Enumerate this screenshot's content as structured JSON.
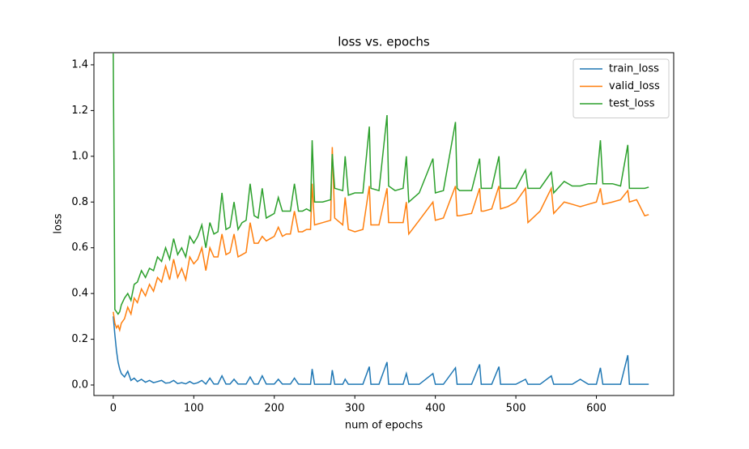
{
  "chart_data": {
    "type": "line",
    "title": "loss vs. epochs",
    "x_label": "num of epochs",
    "y_label": "loss",
    "legend": "upper right",
    "grid": false,
    "xlim": [
      -24,
      696
    ],
    "ylim": [
      -0.046,
      1.453
    ],
    "xticks": [
      0,
      100,
      200,
      300,
      400,
      500,
      600
    ],
    "yticks": [
      {
        "value": 0,
        "label": "0.0"
      },
      {
        "value": 0.2,
        "label": "0.2"
      },
      {
        "value": 0.4,
        "label": "0.4"
      },
      {
        "value": 0.6,
        "label": "0.6"
      },
      {
        "value": 0.8,
        "label": "0.8"
      },
      {
        "value": 1,
        "label": "1.0"
      },
      {
        "value": 1.2,
        "label": "1.2"
      },
      {
        "value": 1.4,
        "label": "1.4"
      }
    ],
    "x": [
      0,
      2,
      4,
      6,
      8,
      10,
      14,
      18,
      22,
      26,
      30,
      35,
      40,
      45,
      50,
      55,
      60,
      65,
      70,
      75,
      80,
      85,
      90,
      95,
      100,
      105,
      110,
      115,
      120,
      125,
      130,
      135,
      140,
      145,
      150,
      155,
      160,
      165,
      170,
      175,
      180,
      185,
      190,
      195,
      200,
      205,
      210,
      215,
      220,
      225,
      230,
      235,
      240,
      245,
      247,
      250,
      260,
      270,
      272,
      275,
      285,
      288,
      292,
      300,
      310,
      318,
      320,
      330,
      340,
      342,
      350,
      360,
      364,
      367,
      380,
      397,
      400,
      410,
      425,
      427,
      430,
      445,
      455,
      457,
      460,
      470,
      479,
      481,
      490,
      500,
      512,
      515,
      530,
      544,
      547,
      560,
      570,
      580,
      590,
      600,
      605,
      608,
      620,
      630,
      639,
      641,
      650,
      660,
      665
    ],
    "series": [
      {
        "name": "train_loss",
        "color": "#1f77b4",
        "values": [
          0.3,
          0.22,
          0.15,
          0.1,
          0.07,
          0.05,
          0.035,
          0.06,
          0.02,
          0.03,
          0.015,
          0.025,
          0.012,
          0.02,
          0.01,
          0.015,
          0.02,
          0.008,
          0.01,
          0.02,
          0.006,
          0.01,
          0.005,
          0.015,
          0.005,
          0.01,
          0.02,
          0.004,
          0.03,
          0.004,
          0.004,
          0.04,
          0.004,
          0.004,
          0.025,
          0.004,
          0.004,
          0.004,
          0.035,
          0.004,
          0.004,
          0.04,
          0.004,
          0.004,
          0.004,
          0.025,
          0.004,
          0.004,
          0.004,
          0.03,
          0.004,
          0.003,
          0.003,
          0.003,
          0.07,
          0.003,
          0.003,
          0.003,
          0.065,
          0.003,
          0.003,
          0.025,
          0.003,
          0.003,
          0.003,
          0.08,
          0.003,
          0.003,
          0.1,
          0.003,
          0.003,
          0.003,
          0.05,
          0.003,
          0.003,
          0.05,
          0.003,
          0.003,
          0.075,
          0.003,
          0.003,
          0.003,
          0.09,
          0.003,
          0.003,
          0.003,
          0.08,
          0.003,
          0.003,
          0.003,
          0.025,
          0.003,
          0.003,
          0.04,
          0.003,
          0.003,
          0.003,
          0.025,
          0.003,
          0.003,
          0.075,
          0.003,
          0.003,
          0.003,
          0.13,
          0.003,
          0.003,
          0.003,
          0.003
        ]
      },
      {
        "name": "valid_loss",
        "color": "#ff7f0e",
        "values": [
          0.32,
          0.27,
          0.25,
          0.26,
          0.24,
          0.27,
          0.29,
          0.34,
          0.31,
          0.38,
          0.36,
          0.42,
          0.39,
          0.44,
          0.41,
          0.47,
          0.45,
          0.52,
          0.46,
          0.55,
          0.47,
          0.51,
          0.46,
          0.56,
          0.53,
          0.55,
          0.6,
          0.5,
          0.6,
          0.56,
          0.56,
          0.66,
          0.57,
          0.58,
          0.66,
          0.56,
          0.57,
          0.58,
          0.71,
          0.62,
          0.62,
          0.65,
          0.63,
          0.64,
          0.65,
          0.69,
          0.65,
          0.66,
          0.66,
          0.76,
          0.67,
          0.67,
          0.68,
          0.68,
          0.88,
          0.7,
          0.71,
          0.72,
          1.04,
          0.73,
          0.7,
          0.82,
          0.68,
          0.67,
          0.68,
          0.87,
          0.7,
          0.7,
          0.86,
          0.71,
          0.71,
          0.71,
          0.8,
          0.66,
          0.72,
          0.8,
          0.72,
          0.73,
          0.87,
          0.74,
          0.74,
          0.75,
          0.86,
          0.76,
          0.76,
          0.77,
          0.87,
          0.77,
          0.78,
          0.8,
          0.86,
          0.71,
          0.76,
          0.86,
          0.75,
          0.8,
          0.79,
          0.78,
          0.79,
          0.8,
          0.86,
          0.79,
          0.8,
          0.81,
          0.85,
          0.8,
          0.81,
          0.74,
          0.745
        ]
      },
      {
        "name": "test_loss",
        "color": "#2ca02c",
        "values": [
          1.45,
          0.33,
          0.32,
          0.31,
          0.32,
          0.35,
          0.38,
          0.4,
          0.37,
          0.44,
          0.45,
          0.5,
          0.47,
          0.51,
          0.5,
          0.56,
          0.54,
          0.6,
          0.55,
          0.64,
          0.57,
          0.6,
          0.56,
          0.65,
          0.62,
          0.65,
          0.7,
          0.6,
          0.71,
          0.66,
          0.67,
          0.84,
          0.68,
          0.69,
          0.8,
          0.68,
          0.71,
          0.72,
          0.88,
          0.74,
          0.73,
          0.86,
          0.73,
          0.74,
          0.75,
          0.82,
          0.76,
          0.76,
          0.76,
          0.88,
          0.76,
          0.76,
          0.77,
          0.76,
          1.07,
          0.8,
          0.8,
          0.81,
          1.01,
          0.86,
          0.85,
          1.0,
          0.83,
          0.84,
          0.84,
          1.13,
          0.86,
          0.85,
          1.18,
          0.87,
          0.85,
          0.86,
          1.0,
          0.8,
          0.84,
          0.99,
          0.84,
          0.85,
          1.15,
          0.86,
          0.85,
          0.85,
          0.99,
          0.86,
          0.86,
          0.86,
          1.0,
          0.86,
          0.86,
          0.86,
          0.94,
          0.86,
          0.86,
          0.93,
          0.84,
          0.89,
          0.87,
          0.87,
          0.88,
          0.88,
          1.07,
          0.88,
          0.88,
          0.87,
          1.05,
          0.86,
          0.86,
          0.86,
          0.865
        ]
      }
    ]
  }
}
